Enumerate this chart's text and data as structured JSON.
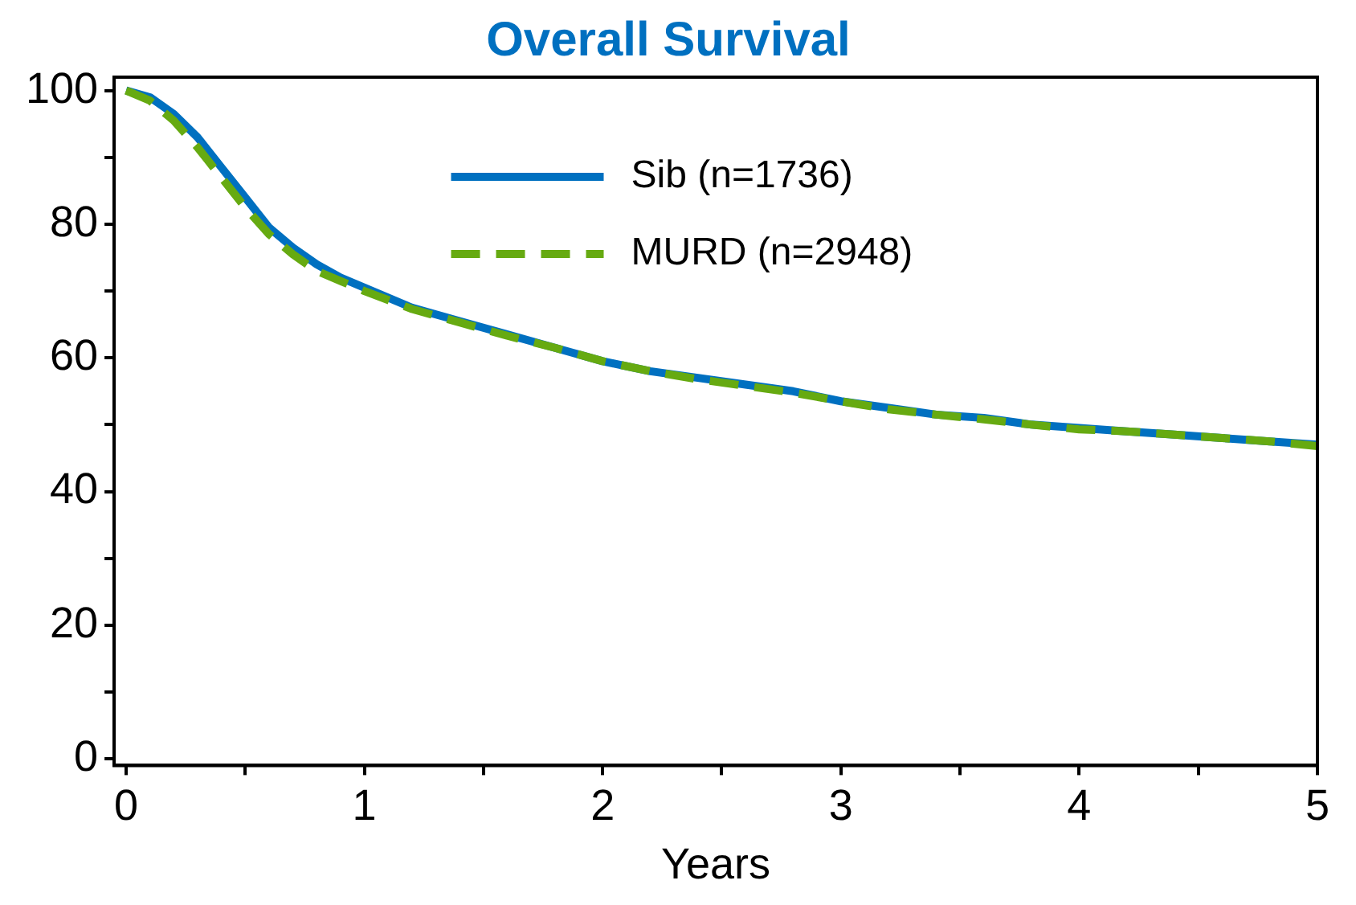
{
  "chart_data": {
    "type": "line",
    "title": "Overall Survival",
    "xlabel": "Years",
    "xlim": [
      -0.05,
      5
    ],
    "ylim": [
      -1,
      102
    ],
    "xticks": [
      0,
      {
        "value": 0.5,
        "label": null
      },
      1,
      {
        "value": 1.5,
        "label": null
      },
      2,
      {
        "value": 2.5,
        "label": null
      },
      3,
      {
        "value": 3.5,
        "label": null
      },
      4,
      {
        "value": 4.5,
        "label": null
      },
      5
    ],
    "yticks": [
      0,
      {
        "value": 10,
        "label": null
      },
      20,
      {
        "value": 30,
        "label": null
      },
      40,
      {
        "value": 50,
        "label": null
      },
      60,
      {
        "value": 70,
        "label": null
      },
      80,
      {
        "value": 90,
        "label": null
      },
      100
    ],
    "grid": false,
    "legend": "top",
    "marker": "none",
    "x": [
      0,
      0.1,
      0.2,
      0.3,
      0.4,
      0.5,
      0.6,
      0.7,
      0.8,
      0.9,
      1.0,
      1.2,
      1.4,
      1.6,
      1.8,
      2.0,
      2.2,
      2.4,
      2.6,
      2.8,
      3.0,
      3.2,
      3.4,
      3.6,
      3.8,
      4.0,
      4.2,
      4.4,
      4.6,
      4.8,
      5.0
    ],
    "series": [
      {
        "name": "Sib (n=1736)",
        "color": "#0070c0",
        "line_style": "solid",
        "values": [
          100,
          99,
          96.5,
          93,
          88.5,
          84,
          79.5,
          76.5,
          74,
          72,
          70.5,
          67.5,
          65.5,
          63.5,
          61.5,
          59.5,
          58,
          57,
          56,
          55,
          53.5,
          52.5,
          51.5,
          51,
          50,
          49.5,
          49,
          48.5,
          48,
          47.5,
          47
        ]
      },
      {
        "name": "MURD (n=2948)",
        "color": "#66aa11",
        "line_style": "dashed",
        "values": [
          100,
          98.5,
          95.5,
          91.5,
          87,
          82.5,
          78.5,
          75.5,
          73,
          71.5,
          70,
          67.3,
          65.3,
          63.3,
          61.5,
          59.5,
          58,
          56.8,
          55.8,
          54.8,
          53.5,
          52.3,
          51.5,
          50.8,
          50,
          49.3,
          49,
          48.5,
          48,
          47.5,
          46.8
        ]
      }
    ]
  }
}
